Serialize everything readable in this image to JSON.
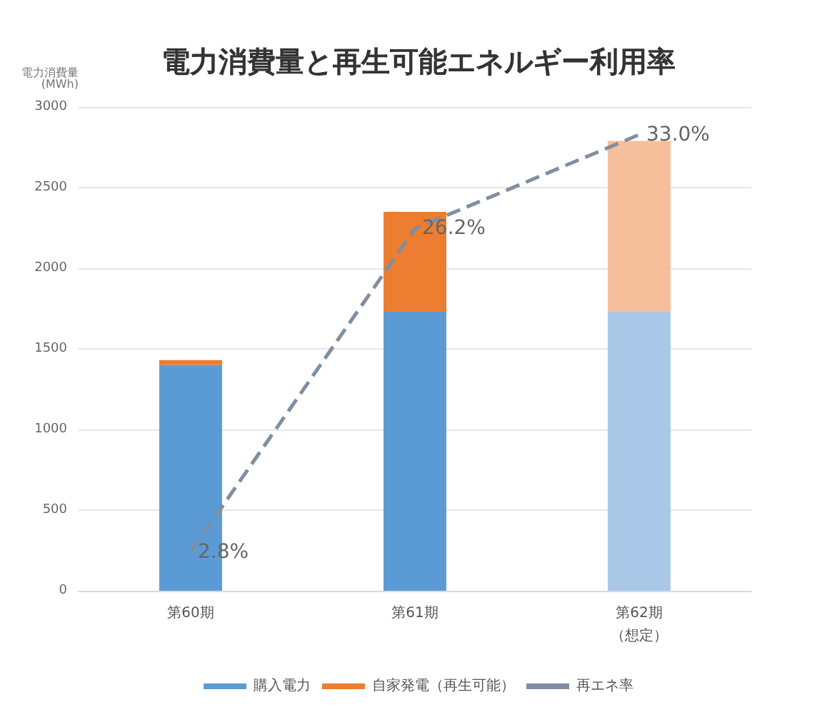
{
  "chart_data": {
    "type": "bar",
    "title": "電力消費量と再生可能エネルギー利用率",
    "ylabel": "電力消費量\n(MWh)",
    "categories": [
      "第60期",
      "第61期",
      "第62期（想定）"
    ],
    "stacked": true,
    "series": [
      {
        "name": "購入電力",
        "color": "#5b9bd5",
        "colors": [
          "#5b9bd5",
          "#5b9bd5",
          "#a9c8e8"
        ],
        "values": [
          1400,
          1730,
          1730
        ]
      },
      {
        "name": "自家発電（再生可能）",
        "color": "#ed7d31",
        "colors": [
          "#ed7d31",
          "#ed7d31",
          "#f6bf9b"
        ],
        "values": [
          30,
          620,
          1060
        ]
      },
      {
        "name": "再エネ率",
        "type": "line",
        "axis": "y2",
        "color": "#7f8ea0",
        "line_style": "dashed",
        "marker": "none",
        "values": [
          2.8,
          26.2,
          33.0
        ],
        "value_labels": [
          "2.8%",
          "26.2%",
          "33.0%"
        ]
      }
    ],
    "ylim": [
      0,
      3000
    ],
    "yticks": [
      0,
      500,
      1000,
      1500,
      2000,
      2500,
      3000
    ],
    "grid": "y",
    "legend": "bottom"
  }
}
